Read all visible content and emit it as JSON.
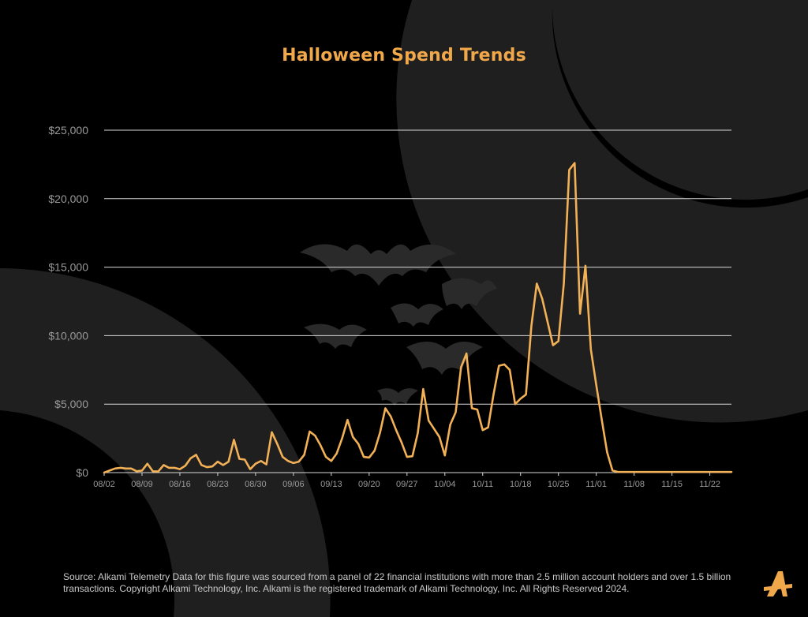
{
  "title": "Halloween Spend Trends",
  "footnote": "Source:  Alkami Telemetry Data for this figure was sourced from a panel of 22 financial institutions with more than 2.5 million account holders and over 1.5 billion transactions. Copyright Alkami Technology, Inc. Alkami is the registered trademark of Alkami Technology, Inc. All Rights Reserved 2024.",
  "colors": {
    "background": "#000000",
    "accent": "#f0a84b",
    "line": "#f2b156",
    "grid": "#d9d9d9",
    "tick_text": "#9a9a9a",
    "decor": "#1f1f1f",
    "bats": "#2a2a2a"
  },
  "logo_icon": "alkami-logo-icon",
  "chart_data": {
    "type": "line",
    "title": "Halloween Spend Trends",
    "xlabel": "",
    "ylabel": "",
    "ylim": [
      0,
      25000
    ],
    "yticks": [
      0,
      5000,
      10000,
      15000,
      20000,
      25000
    ],
    "ytick_labels": [
      "$0",
      "$5,000",
      "$10,000",
      "$15,000",
      "$20,000",
      "$25,000"
    ],
    "xtick_labels": [
      "08/02",
      "08/09",
      "08/16",
      "08/23",
      "08/30",
      "09/06",
      "09/13",
      "09/20",
      "09/27",
      "10/04",
      "10/11",
      "10/18",
      "10/25",
      "11/01",
      "11/08",
      "11/15",
      "11/22"
    ],
    "grid": true,
    "legend": "none",
    "x": [
      "08/02",
      "08/03",
      "08/04",
      "08/05",
      "08/06",
      "08/07",
      "08/08",
      "08/09",
      "08/10",
      "08/11",
      "08/12",
      "08/13",
      "08/14",
      "08/15",
      "08/16",
      "08/17",
      "08/18",
      "08/19",
      "08/20",
      "08/21",
      "08/22",
      "08/23",
      "08/24",
      "08/25",
      "08/26",
      "08/27",
      "08/28",
      "08/29",
      "08/30",
      "08/31",
      "09/01",
      "09/02",
      "09/03",
      "09/04",
      "09/05",
      "09/06",
      "09/07",
      "09/08",
      "09/09",
      "09/10",
      "09/11",
      "09/12",
      "09/13",
      "09/14",
      "09/15",
      "09/16",
      "09/17",
      "09/18",
      "09/19",
      "09/20",
      "09/21",
      "09/22",
      "09/23",
      "09/24",
      "09/25",
      "09/26",
      "09/27",
      "09/28",
      "09/29",
      "09/30",
      "10/01",
      "10/02",
      "10/03",
      "10/04",
      "10/05",
      "10/06",
      "10/07",
      "10/08",
      "10/09",
      "10/10",
      "10/11",
      "10/12",
      "10/13",
      "10/14",
      "10/15",
      "10/16",
      "10/17",
      "10/18",
      "10/19",
      "10/20",
      "10/21",
      "10/22",
      "10/23",
      "10/24",
      "10/25",
      "10/26",
      "10/27",
      "10/28",
      "10/29",
      "10/30",
      "10/31",
      "11/01",
      "11/02",
      "11/03",
      "11/04",
      "11/05",
      "11/06",
      "11/07",
      "11/08",
      "11/09",
      "11/10",
      "11/11",
      "11/12",
      "11/13",
      "11/14",
      "11/15",
      "11/16",
      "11/17",
      "11/18",
      "11/19",
      "11/20",
      "11/21",
      "11/22",
      "11/23",
      "11/24",
      "11/25",
      "11/26"
    ],
    "series": [
      {
        "values": [
          0,
          150,
          300,
          350,
          300,
          300,
          100,
          150,
          650,
          100,
          80,
          550,
          350,
          350,
          250,
          500,
          1050,
          1300,
          550,
          400,
          450,
          800,
          550,
          800,
          2400,
          1000,
          950,
          250,
          650,
          850,
          600,
          2950,
          2100,
          1150,
          850,
          700,
          800,
          1300,
          3000,
          2700,
          2000,
          1150,
          850,
          1400,
          2500,
          3850,
          2600,
          2100,
          1150,
          1100,
          1600,
          2900,
          4700,
          4100,
          3100,
          2200,
          1150,
          1200,
          2900,
          6100,
          3800,
          3200,
          2600,
          1250,
          3500,
          4400,
          7700,
          8700,
          4700,
          4600,
          3100,
          3300,
          5700,
          7800,
          7900,
          7500,
          5000,
          5400,
          5700,
          10700,
          13800,
          12700,
          11000,
          9300,
          9600,
          13800,
          22100,
          22600,
          11600,
          15100,
          9000,
          6400,
          3900,
          1500,
          150,
          50,
          50,
          50,
          50,
          50,
          50,
          50,
          50,
          50,
          50,
          50,
          50,
          50,
          50,
          50,
          50,
          50,
          50,
          50,
          50,
          50,
          50
        ]
      }
    ]
  }
}
